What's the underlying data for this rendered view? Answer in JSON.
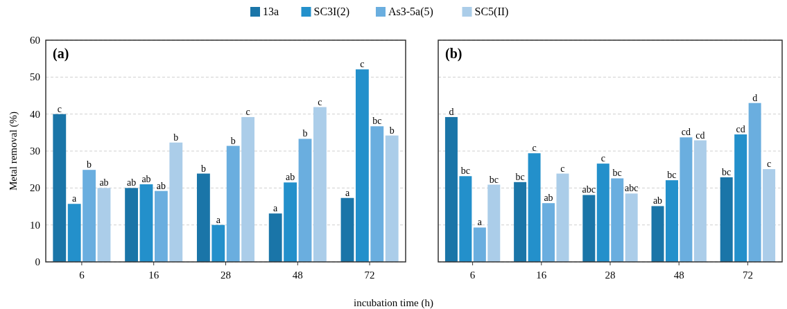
{
  "chart_data": [
    {
      "type": "bar",
      "title": "(a)",
      "xlabel": "incubation time (h)",
      "ylabel": "Metal removal (%)",
      "categories": [
        "6",
        "16",
        "28",
        "48",
        "72"
      ],
      "ylim": [
        0,
        60
      ],
      "yticks": [
        0,
        10,
        20,
        30,
        40,
        50,
        60
      ],
      "grid": "y",
      "legend": "top",
      "series": [
        {
          "name": "13a",
          "color": "#1a75a8",
          "values": [
            40,
            20,
            23.9,
            13.1,
            17.3
          ],
          "value_labels": [
            "c",
            "ab",
            "b",
            "a",
            "a"
          ]
        },
        {
          "name": "SC3I(2)",
          "color": "#2390cb",
          "values": [
            15.7,
            21,
            10,
            21.5,
            52.1
          ],
          "value_labels": [
            "a",
            "ab",
            "a",
            "ab",
            "c"
          ]
        },
        {
          "name": "As3-5a(5)",
          "color": "#6aaedf",
          "values": [
            24.9,
            19.2,
            31.4,
            33.3,
            36.7
          ],
          "value_labels": [
            "b",
            "ab",
            "b",
            "b",
            "bc"
          ]
        },
        {
          "name": "SC5(II)",
          "color": "#abcde9",
          "values": [
            20,
            32.3,
            39.2,
            41.9,
            34.2
          ],
          "value_labels": [
            "ab",
            "b",
            "c",
            "c",
            "b"
          ]
        }
      ]
    },
    {
      "type": "bar",
      "title": "(b)",
      "categories": [
        "6",
        "16",
        "28",
        "48",
        "72"
      ],
      "ylim": [
        0,
        60
      ],
      "yticks": [
        0,
        10,
        20,
        30,
        40,
        50,
        60
      ],
      "grid": "y",
      "tick_labels": "x",
      "series": [
        {
          "color": "#1a75a8",
          "values": [
            39.2,
            21.6,
            18.1,
            15.1,
            22.9
          ],
          "value_labels": [
            "d",
            "bc",
            "abc",
            "ab",
            "bc"
          ]
        },
        {
          "color": "#2390cb",
          "values": [
            23.2,
            29.4,
            26.6,
            22.1,
            34.5
          ],
          "value_labels": [
            "bc",
            "c",
            "c",
            "bc",
            "cd"
          ]
        },
        {
          "color": "#6aaedf",
          "values": [
            9.3,
            15.9,
            22.6,
            33.7,
            43
          ],
          "value_labels": [
            "a",
            "ab",
            "bc",
            "cd",
            "d"
          ]
        },
        {
          "color": "#abcde9",
          "values": [
            20.9,
            23.9,
            18.5,
            32.9,
            25.1
          ],
          "value_labels": [
            "bc",
            "c",
            "abc",
            "cd",
            "c"
          ]
        }
      ]
    }
  ]
}
